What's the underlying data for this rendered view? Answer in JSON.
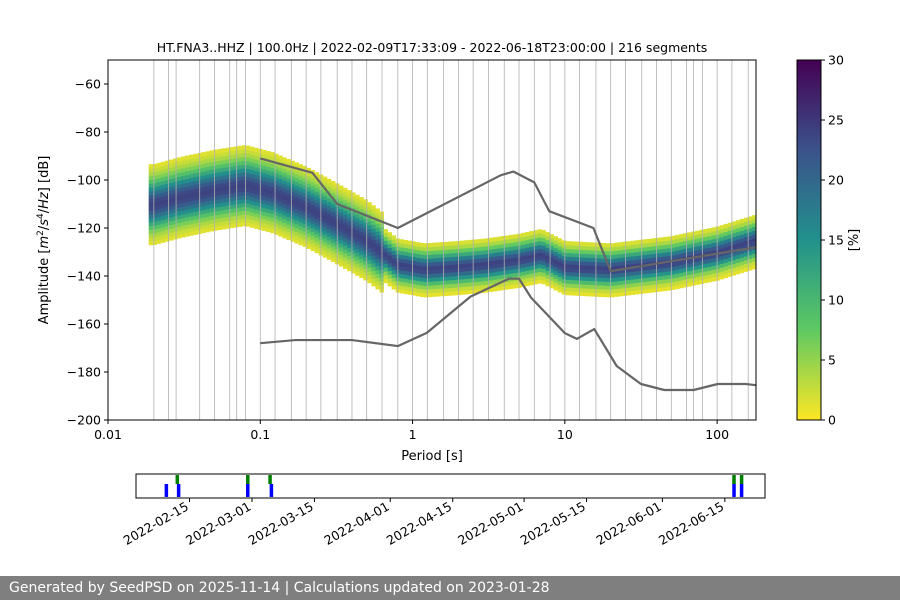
{
  "chart_data": [
    {
      "type": "heatmap",
      "title": "HT.FNA3..HHZ | 100.0Hz | 2022-02-09T17:33:09 - 2022-06-18T23:00:00 | 216 segments",
      "xlabel": "Period [s]",
      "ylabel_parts": [
        "Amplitude [",
        "m",
        "2",
        "/",
        "s",
        "4",
        "/",
        "Hz",
        "] [dB]"
      ],
      "xscale": "log",
      "xlim": [
        0.01,
        180
      ],
      "ylim": [
        -200,
        -50
      ],
      "x_ticks": [
        {
          "value": 0.01,
          "label": "0.01"
        },
        {
          "value": 0.1,
          "label": "0.1"
        },
        {
          "value": 1,
          "label": "1"
        },
        {
          "value": 10,
          "label": "10"
        },
        {
          "value": 100,
          "label": "100"
        }
      ],
      "y_ticks": [
        {
          "value": -60,
          "label": "−60"
        },
        {
          "value": -80,
          "label": "−80"
        },
        {
          "value": -100,
          "label": "−100"
        },
        {
          "value": -120,
          "label": "−120"
        },
        {
          "value": -140,
          "label": "−140"
        },
        {
          "value": -160,
          "label": "−160"
        },
        {
          "value": -180,
          "label": "−180"
        },
        {
          "value": -200,
          "label": "−200"
        }
      ],
      "period_grid": [
        0.02,
        0.025,
        0.028,
        0.04,
        0.05,
        0.063,
        0.07,
        0.08,
        0.1,
        0.125,
        0.16,
        0.2,
        0.25,
        0.32,
        0.4,
        0.5,
        0.63,
        0.8,
        1.0,
        1.25,
        1.6,
        2.0,
        2.5,
        3.15,
        4.0,
        5.0,
        6.3,
        8.0,
        10,
        12.5,
        16,
        20,
        25,
        32,
        40,
        50,
        63,
        70,
        80,
        100,
        125,
        160
      ],
      "mode_curve": [
        {
          "period": 0.02,
          "db": -111
        },
        {
          "period": 0.03,
          "db": -108
        },
        {
          "period": 0.05,
          "db": -105
        },
        {
          "period": 0.08,
          "db": -103
        },
        {
          "period": 0.12,
          "db": -106
        },
        {
          "period": 0.2,
          "db": -112
        },
        {
          "period": 0.3,
          "db": -118
        },
        {
          "period": 0.5,
          "db": -126
        },
        {
          "period": 0.8,
          "db": -136
        },
        {
          "period": 1.2,
          "db": -138
        },
        {
          "period": 2,
          "db": -137
        },
        {
          "period": 3,
          "db": -136
        },
        {
          "period": 5,
          "db": -134
        },
        {
          "period": 7,
          "db": -132
        },
        {
          "period": 10,
          "db": -137
        },
        {
          "period": 20,
          "db": -138
        },
        {
          "period": 50,
          "db": -135
        },
        {
          "period": 100,
          "db": -131
        },
        {
          "period": 180,
          "db": -126
        }
      ],
      "nhnm": [
        {
          "period": 0.1,
          "db": -91
        },
        {
          "period": 0.22,
          "db": -97
        },
        {
          "period": 0.32,
          "db": -110
        },
        {
          "period": 0.8,
          "db": -120
        },
        {
          "period": 3.8,
          "db": -98
        },
        {
          "period": 4.6,
          "db": -96.5
        },
        {
          "period": 6.3,
          "db": -101
        },
        {
          "period": 7.9,
          "db": -113
        },
        {
          "period": 15.4,
          "db": -120
        },
        {
          "period": 20,
          "db": -138
        },
        {
          "period": 180,
          "db": -128
        }
      ],
      "nlnm": [
        {
          "period": 0.1,
          "db": -168
        },
        {
          "period": 0.17,
          "db": -166.7
        },
        {
          "period": 0.4,
          "db": -166.7
        },
        {
          "period": 0.8,
          "db": -169.2
        },
        {
          "period": 1.24,
          "db": -163.7
        },
        {
          "period": 2.4,
          "db": -148.6
        },
        {
          "period": 4.3,
          "db": -141.1
        },
        {
          "period": 5.0,
          "db": -141.1
        },
        {
          "period": 6.0,
          "db": -149
        },
        {
          "period": 10,
          "db": -163.8
        },
        {
          "period": 12,
          "db": -166.2
        },
        {
          "period": 15.6,
          "db": -162.1
        },
        {
          "period": 21.9,
          "db": -177.5
        },
        {
          "period": 31.6,
          "db": -185
        },
        {
          "period": 45,
          "db": -187.5
        },
        {
          "period": 70,
          "db": -187.5
        },
        {
          "period": 101,
          "db": -185
        },
        {
          "period": 154,
          "db": -185
        },
        {
          "period": 180,
          "db": -185.5
        }
      ],
      "colorbar": {
        "label": "[%]",
        "range": [
          0,
          30
        ],
        "ticks": [
          {
            "value": 0,
            "label": "0"
          },
          {
            "value": 5,
            "label": "5"
          },
          {
            "value": 10,
            "label": "10"
          },
          {
            "value": 15,
            "label": "15"
          },
          {
            "value": 20,
            "label": "20"
          },
          {
            "value": 25,
            "label": "25"
          },
          {
            "value": 30,
            "label": "30"
          }
        ],
        "colors": [
          "#fde725",
          "#5ec962",
          "#21918c",
          "#3b528b",
          "#440154"
        ]
      },
      "curve_color": "#666666"
    },
    {
      "type": "timeline",
      "x_ticks": [
        {
          "date": "2022-02-15",
          "label": "2022-02-15"
        },
        {
          "date": "2022-03-01",
          "label": "2022-03-01"
        },
        {
          "date": "2022-03-15",
          "label": "2022-03-15"
        },
        {
          "date": "2022-04-01",
          "label": "2022-04-01"
        },
        {
          "date": "2022-04-15",
          "label": "2022-04-15"
        },
        {
          "date": "2022-05-01",
          "label": "2022-05-01"
        },
        {
          "date": "2022-05-15",
          "label": "2022-05-15"
        },
        {
          "date": "2022-06-01",
          "label": "2022-06-01"
        },
        {
          "date": "2022-06-15",
          "label": "2022-06-15"
        }
      ],
      "xlim": [
        "2022-02-03",
        "2022-06-24"
      ],
      "coverage": [
        {
          "date": "2022-02-09.75",
          "kind": "blue"
        },
        {
          "date": "2022-02-12.2",
          "kind": "green"
        },
        {
          "date": "2022-02-12.5",
          "kind": "blue"
        },
        {
          "date": "2022-02-28",
          "kind": "green"
        },
        {
          "date": "2022-02-28",
          "kind": "blue"
        },
        {
          "date": "2022-03-05",
          "kind": "green"
        },
        {
          "date": "2022-03-05.3",
          "kind": "blue"
        },
        {
          "date": "2022-06-17",
          "kind": "green"
        },
        {
          "date": "2022-06-17",
          "kind": "blue"
        },
        {
          "date": "2022-06-18.7",
          "kind": "green"
        },
        {
          "date": "2022-06-18.7",
          "kind": "blue"
        }
      ]
    }
  ],
  "footer": {
    "text": "Generated by SeedPSD on 2025-11-14 | Calculations updated on 2023-01-28"
  }
}
